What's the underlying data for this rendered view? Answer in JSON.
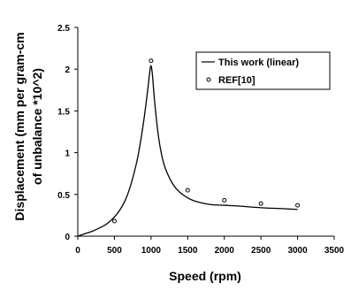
{
  "chart_data": {
    "type": "line",
    "xlabel": "Speed (rpm)",
    "ylabel_lines": [
      "Displacement (mm per gram-cm",
      "of unbalance *10^2)"
    ],
    "xlim": [
      0,
      3500
    ],
    "ylim": [
      0,
      2.5
    ],
    "x_ticks": [
      "0",
      "500",
      "1000",
      "1500",
      "2000",
      "2500",
      "3000",
      "3500"
    ],
    "y_ticks": [
      "0",
      "0.5",
      "1",
      "1.5",
      "2",
      "2.5"
    ],
    "grid": false,
    "legend_position": "top-right",
    "series": [
      {
        "name": "This work (linear)",
        "style": "line",
        "x": [
          0,
          100,
          200,
          300,
          400,
          500,
          600,
          700,
          800,
          850,
          900,
          950,
          980,
          1000,
          1020,
          1050,
          1100,
          1150,
          1200,
          1300,
          1400,
          1500,
          1600,
          1800,
          2000,
          2200,
          2500,
          2800,
          3000
        ],
        "y": [
          0,
          0.03,
          0.06,
          0.1,
          0.15,
          0.23,
          0.35,
          0.55,
          0.87,
          1.1,
          1.38,
          1.72,
          1.95,
          2.04,
          1.92,
          1.6,
          1.2,
          0.95,
          0.8,
          0.62,
          0.52,
          0.46,
          0.42,
          0.38,
          0.37,
          0.36,
          0.34,
          0.33,
          0.32
        ]
      },
      {
        "name": "REF[10]",
        "style": "marker",
        "x": [
          500,
          1000,
          1500,
          2000,
          2500,
          3000
        ],
        "y": [
          0.18,
          2.1,
          0.55,
          0.43,
          0.39,
          0.37
        ]
      }
    ]
  }
}
